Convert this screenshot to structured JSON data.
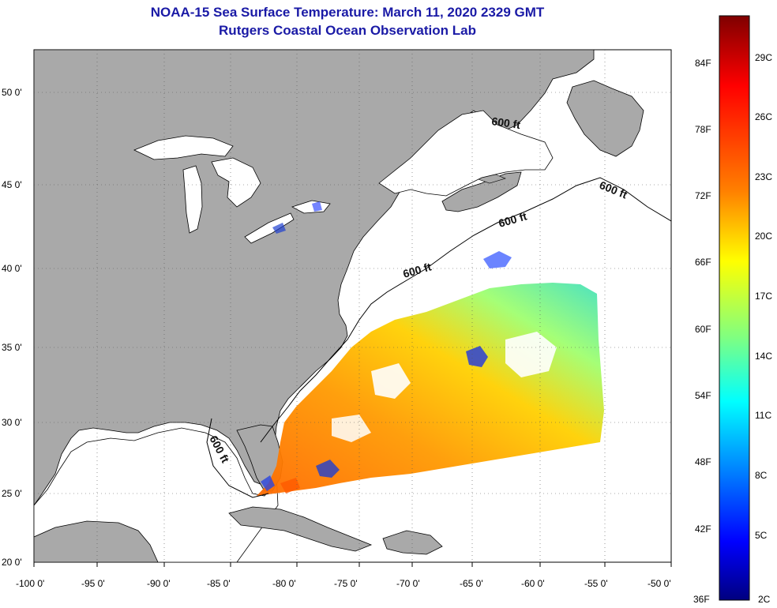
{
  "title": "NOAA-15 Sea Surface Temperature:  March 11, 2020 2329 GMT",
  "subtitle": "Rutgers Coastal Ocean Observation Lab",
  "map": {
    "lon_ticks": [
      "-100 0'",
      "-95 0'",
      "-90 0'",
      "-85 0'",
      "-80 0'",
      "-75 0'",
      "-70 0'",
      "-65 0'",
      "-60 0'",
      "-55 0'",
      "-50 0'"
    ],
    "lat_ticks": [
      "50 0'",
      "45 0'",
      "40 0'",
      "35 0'",
      "30 0'",
      "25 0'",
      "20 0'"
    ],
    "lon_range": [
      -100,
      -50
    ],
    "lat_range": [
      20,
      52.5
    ],
    "isobath_labels": [
      "600 ft",
      "600 ft",
      "600 ft",
      "600 ft",
      "600 ft"
    ],
    "colors": {
      "land": "#a9a9a9",
      "water": "#ffffff",
      "title": "#1a1aa6"
    }
  },
  "colorbar": {
    "fahrenheit": [
      "84F",
      "78F",
      "72F",
      "66F",
      "60F",
      "54F",
      "48F",
      "42F",
      "36F"
    ],
    "celsius": [
      "29C",
      "26C",
      "23C",
      "20C",
      "17C",
      "14C",
      "11C",
      "8C",
      "5C",
      "2C"
    ],
    "colors_top_to_bottom": [
      "#7f0000",
      "#ff0000",
      "#ff8000",
      "#ffff00",
      "#80ff80",
      "#00ffff",
      "#0080ff",
      "#0000ff",
      "#00007f"
    ]
  }
}
